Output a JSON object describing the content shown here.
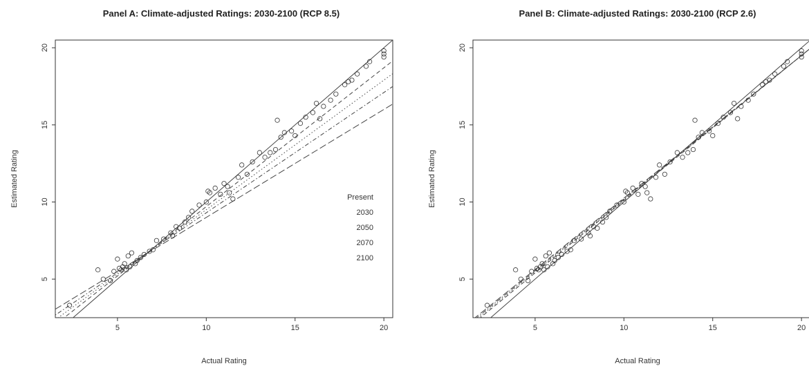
{
  "chart_data": [
    {
      "type": "scatter",
      "title": "Panel A: Climate-adjusted Ratings: 2030-2100 (RCP 8.5)",
      "xlabel": "Actual Rating",
      "ylabel": "Estimated Rating",
      "xlim": [
        1.5,
        20.5
      ],
      "ylim": [
        2.5,
        20.5
      ],
      "xticks": [
        "5",
        "10",
        "15",
        "20"
      ],
      "yticks": [
        "5",
        "10",
        "15",
        "20"
      ],
      "grid": false,
      "legend": {
        "placement": "right-center",
        "entries": [
          "Present",
          "2030",
          "2050",
          "2070",
          "2100"
        ]
      },
      "lines": [
        {
          "name": "Present",
          "style": "solid",
          "intercept": 0.0,
          "slope": 1.0
        },
        {
          "name": "2030",
          "style": "dashed",
          "intercept": 0.7,
          "slope": 0.9
        },
        {
          "name": "2050",
          "style": "dotted",
          "intercept": 1.1,
          "slope": 0.84
        },
        {
          "name": "2070",
          "style": "dotdash",
          "intercept": 1.5,
          "slope": 0.78
        },
        {
          "name": "2100",
          "style": "longdash",
          "intercept": 2.0,
          "slope": 0.7
        }
      ],
      "points": [
        [
          2.3,
          3.3
        ],
        [
          3.9,
          5.6
        ],
        [
          4.2,
          5.0
        ],
        [
          4.6,
          4.9
        ],
        [
          4.8,
          5.5
        ],
        [
          5.0,
          6.3
        ],
        [
          5.1,
          5.7
        ],
        [
          5.2,
          5.6
        ],
        [
          5.3,
          5.8
        ],
        [
          5.4,
          6.0
        ],
        [
          5.5,
          5.6
        ],
        [
          5.6,
          6.5
        ],
        [
          5.7,
          5.8
        ],
        [
          5.8,
          6.7
        ],
        [
          6.0,
          6.0
        ],
        [
          6.1,
          6.2
        ],
        [
          6.3,
          6.4
        ],
        [
          6.5,
          6.6
        ],
        [
          6.8,
          6.8
        ],
        [
          7.0,
          6.9
        ],
        [
          7.2,
          7.5
        ],
        [
          7.6,
          7.6
        ],
        [
          8.0,
          8.0
        ],
        [
          8.1,
          7.8
        ],
        [
          8.3,
          8.4
        ],
        [
          8.5,
          8.3
        ],
        [
          8.8,
          8.7
        ],
        [
          9.0,
          9.0
        ],
        [
          9.2,
          9.4
        ],
        [
          9.6,
          9.8
        ],
        [
          10.0,
          10.0
        ],
        [
          10.1,
          10.7
        ],
        [
          10.2,
          10.6
        ],
        [
          10.5,
          10.9
        ],
        [
          10.8,
          10.5
        ],
        [
          11.0,
          11.2
        ],
        [
          11.2,
          11.0
        ],
        [
          11.3,
          10.6
        ],
        [
          11.5,
          10.2
        ],
        [
          11.8,
          11.6
        ],
        [
          12.0,
          12.4
        ],
        [
          12.3,
          11.8
        ],
        [
          12.6,
          12.6
        ],
        [
          13.0,
          13.2
        ],
        [
          13.3,
          12.9
        ],
        [
          13.6,
          13.2
        ],
        [
          13.9,
          13.4
        ],
        [
          14.0,
          15.3
        ],
        [
          14.2,
          14.2
        ],
        [
          14.4,
          14.5
        ],
        [
          14.8,
          14.6
        ],
        [
          15.0,
          14.3
        ],
        [
          15.3,
          15.1
        ],
        [
          15.6,
          15.5
        ],
        [
          16.0,
          15.8
        ],
        [
          16.2,
          16.4
        ],
        [
          16.4,
          15.4
        ],
        [
          16.6,
          16.2
        ],
        [
          17.0,
          16.6
        ],
        [
          17.3,
          17.0
        ],
        [
          17.8,
          17.6
        ],
        [
          18.0,
          17.8
        ],
        [
          18.2,
          17.9
        ],
        [
          18.5,
          18.3
        ],
        [
          19.0,
          18.8
        ],
        [
          19.2,
          19.1
        ],
        [
          20.0,
          19.6
        ],
        [
          20.0,
          19.8
        ],
        [
          20.0,
          19.4
        ]
      ]
    },
    {
      "type": "scatter",
      "title": "Panel B: Climate-adjusted Ratings: 2030-2100 (RCP 2.6)",
      "xlabel": "Actual Rating",
      "ylabel": "Estimated Rating",
      "xlim": [
        1.5,
        20.5
      ],
      "ylim": [
        2.5,
        20.5
      ],
      "xticks": [
        "5",
        "10",
        "15",
        "20"
      ],
      "yticks": [
        "5",
        "10",
        "15",
        "20"
      ],
      "grid": false,
      "lines": [
        {
          "name": "Present",
          "style": "solid",
          "intercept": 0.0,
          "slope": 1.0
        },
        {
          "name": "2030",
          "style": "dashed",
          "intercept": 0.7,
          "slope": 0.94
        },
        {
          "name": "2050",
          "style": "dotted",
          "intercept": 0.8,
          "slope": 0.935
        },
        {
          "name": "2070",
          "style": "dotdash",
          "intercept": 0.9,
          "slope": 0.93
        },
        {
          "name": "2100",
          "style": "longdash",
          "intercept": 1.0,
          "slope": 0.925
        }
      ],
      "points": [
        [
          2.3,
          3.3
        ],
        [
          3.9,
          5.6
        ],
        [
          4.2,
          5.0
        ],
        [
          4.6,
          4.9
        ],
        [
          4.8,
          5.5
        ],
        [
          5.0,
          6.3
        ],
        [
          5.1,
          5.7
        ],
        [
          5.2,
          5.6
        ],
        [
          5.3,
          5.8
        ],
        [
          5.4,
          6.0
        ],
        [
          5.5,
          5.6
        ],
        [
          5.6,
          6.5
        ],
        [
          5.7,
          5.8
        ],
        [
          5.8,
          6.7
        ],
        [
          6.0,
          6.0
        ],
        [
          6.1,
          6.2
        ],
        [
          6.3,
          6.4
        ],
        [
          6.5,
          6.6
        ],
        [
          6.8,
          6.8
        ],
        [
          7.0,
          6.9
        ],
        [
          7.2,
          7.5
        ],
        [
          7.6,
          7.6
        ],
        [
          8.0,
          8.0
        ],
        [
          8.1,
          7.8
        ],
        [
          8.3,
          8.4
        ],
        [
          8.5,
          8.3
        ],
        [
          8.8,
          8.7
        ],
        [
          9.0,
          9.0
        ],
        [
          9.2,
          9.4
        ],
        [
          9.6,
          9.8
        ],
        [
          10.0,
          10.0
        ],
        [
          10.1,
          10.7
        ],
        [
          10.2,
          10.6
        ],
        [
          10.5,
          10.9
        ],
        [
          10.8,
          10.5
        ],
        [
          11.0,
          11.2
        ],
        [
          11.2,
          11.0
        ],
        [
          11.3,
          10.6
        ],
        [
          11.5,
          10.2
        ],
        [
          11.8,
          11.6
        ],
        [
          12.0,
          12.4
        ],
        [
          12.3,
          11.8
        ],
        [
          12.6,
          12.6
        ],
        [
          13.0,
          13.2
        ],
        [
          13.3,
          12.9
        ],
        [
          13.6,
          13.2
        ],
        [
          13.9,
          13.4
        ],
        [
          14.0,
          15.3
        ],
        [
          14.2,
          14.2
        ],
        [
          14.4,
          14.5
        ],
        [
          14.8,
          14.6
        ],
        [
          15.0,
          14.3
        ],
        [
          15.3,
          15.1
        ],
        [
          15.6,
          15.5
        ],
        [
          16.0,
          15.8
        ],
        [
          16.2,
          16.4
        ],
        [
          16.4,
          15.4
        ],
        [
          16.6,
          16.2
        ],
        [
          17.0,
          16.6
        ],
        [
          17.3,
          17.0
        ],
        [
          17.8,
          17.6
        ],
        [
          18.0,
          17.8
        ],
        [
          18.2,
          17.9
        ],
        [
          18.5,
          18.3
        ],
        [
          19.0,
          18.8
        ],
        [
          19.2,
          19.1
        ],
        [
          20.0,
          19.6
        ],
        [
          20.0,
          19.8
        ],
        [
          20.0,
          19.4
        ]
      ]
    }
  ]
}
